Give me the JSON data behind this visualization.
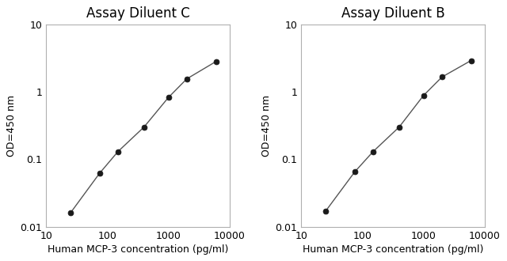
{
  "left_title": "Assay Diluent C",
  "right_title": "Assay Diluent B",
  "xlabel": "Human MCP-3 concentration (pg/ml)",
  "ylabel": "OD=450 nm",
  "left_x": [
    25,
    75,
    150,
    400,
    1000,
    2000,
    6000
  ],
  "left_y": [
    0.016,
    0.062,
    0.13,
    0.3,
    0.82,
    1.55,
    2.8
  ],
  "right_x": [
    25,
    75,
    150,
    400,
    1000,
    2000,
    6000
  ],
  "right_y": [
    0.017,
    0.065,
    0.13,
    0.3,
    0.88,
    1.65,
    2.9
  ],
  "xlim": [
    15,
    10000
  ],
  "ylim": [
    0.01,
    10
  ],
  "line_color": "#555555",
  "marker_color": "#1a1a1a",
  "marker_size": 5,
  "line_width": 1.0,
  "title_fontsize": 12,
  "label_fontsize": 9,
  "tick_fontsize": 9,
  "bg_color": "#ffffff",
  "spine_color": "#b0b0b0",
  "xtick_labels": [
    "10",
    "100",
    "1000",
    "10000"
  ],
  "xtick_vals": [
    10,
    100,
    1000,
    10000
  ],
  "ytick_labels": [
    "0.01",
    "0.1",
    "1",
    "10"
  ],
  "ytick_vals": [
    0.01,
    0.1,
    1,
    10
  ]
}
